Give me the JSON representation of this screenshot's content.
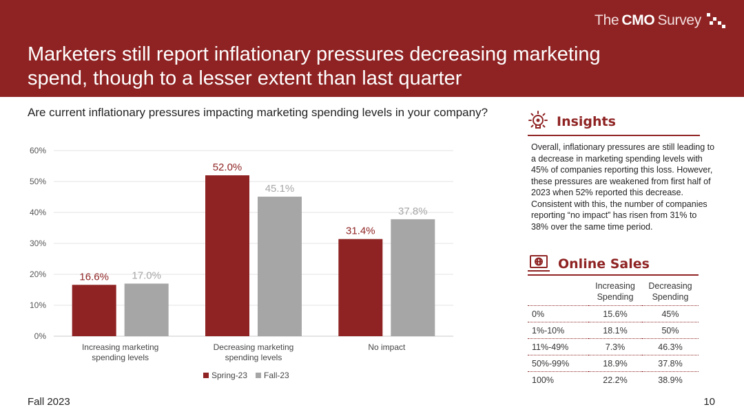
{
  "header": {
    "logo_prefix": "The",
    "logo_bold": "CMO",
    "logo_suffix": "Survey",
    "title": "Marketers still report inflationary pressures decreasing marketing spend, though to a lesser extent than last quarter"
  },
  "question": "Are current inflationary pressures impacting marketing spending levels in your company?",
  "colors": {
    "brand": "#8f2323",
    "spring": "#8f2323",
    "fall": "#a6a6a6"
  },
  "chart_data": {
    "type": "bar",
    "title": "",
    "categories": [
      "Increasing marketing spending levels",
      "Decreasing marketing spending levels",
      "No impact"
    ],
    "category_lines": [
      [
        "Increasing marketing",
        "spending levels"
      ],
      [
        "Decreasing marketing",
        "spending levels"
      ],
      [
        "No impact"
      ]
    ],
    "series": [
      {
        "name": "Spring-23",
        "values": [
          16.6,
          52.0,
          31.4
        ],
        "labels": [
          "16.6%",
          "52.0%",
          "31.4%"
        ]
      },
      {
        "name": "Fall-23",
        "values": [
          17.0,
          45.1,
          37.8
        ],
        "labels": [
          "17.0%",
          "45.1%",
          "37.8%"
        ]
      }
    ],
    "yticks": [
      "0%",
      "10%",
      "20%",
      "30%",
      "40%",
      "50%",
      "60%"
    ],
    "ylim": [
      0,
      60
    ],
    "xlabel": "",
    "ylabel": "",
    "grid": true,
    "legend": "bottom"
  },
  "insights": {
    "heading": "Insights",
    "text": "Overall, inflationary pressures are still leading to a decrease in marketing spending levels with 45% of companies reporting this loss. However, these pressures are weakened from first half of 2023 when 52% reported this decrease. Consistent with this, the number of companies reporting “no impact” has risen from 31% to 38% over the same time period."
  },
  "online_sales": {
    "heading": "Online Sales",
    "col_increasing": [
      "Increasing",
      "Spending"
    ],
    "col_decreasing": [
      "Decreasing",
      "Spending"
    ],
    "rows": [
      {
        "range": "0%",
        "increasing": "15.6%",
        "decreasing": "45%"
      },
      {
        "range": "1%-10%",
        "increasing": "18.1%",
        "decreasing": "50%"
      },
      {
        "range": "11%-49%",
        "increasing": "7.3%",
        "decreasing": "46.3%"
      },
      {
        "range": "50%-99%",
        "increasing": "18.9%",
        "decreasing": "37.8%"
      },
      {
        "range": "100%",
        "increasing": "22.2%",
        "decreasing": "38.9%"
      }
    ]
  },
  "footer": {
    "period": "Fall 2023",
    "page": "10"
  }
}
